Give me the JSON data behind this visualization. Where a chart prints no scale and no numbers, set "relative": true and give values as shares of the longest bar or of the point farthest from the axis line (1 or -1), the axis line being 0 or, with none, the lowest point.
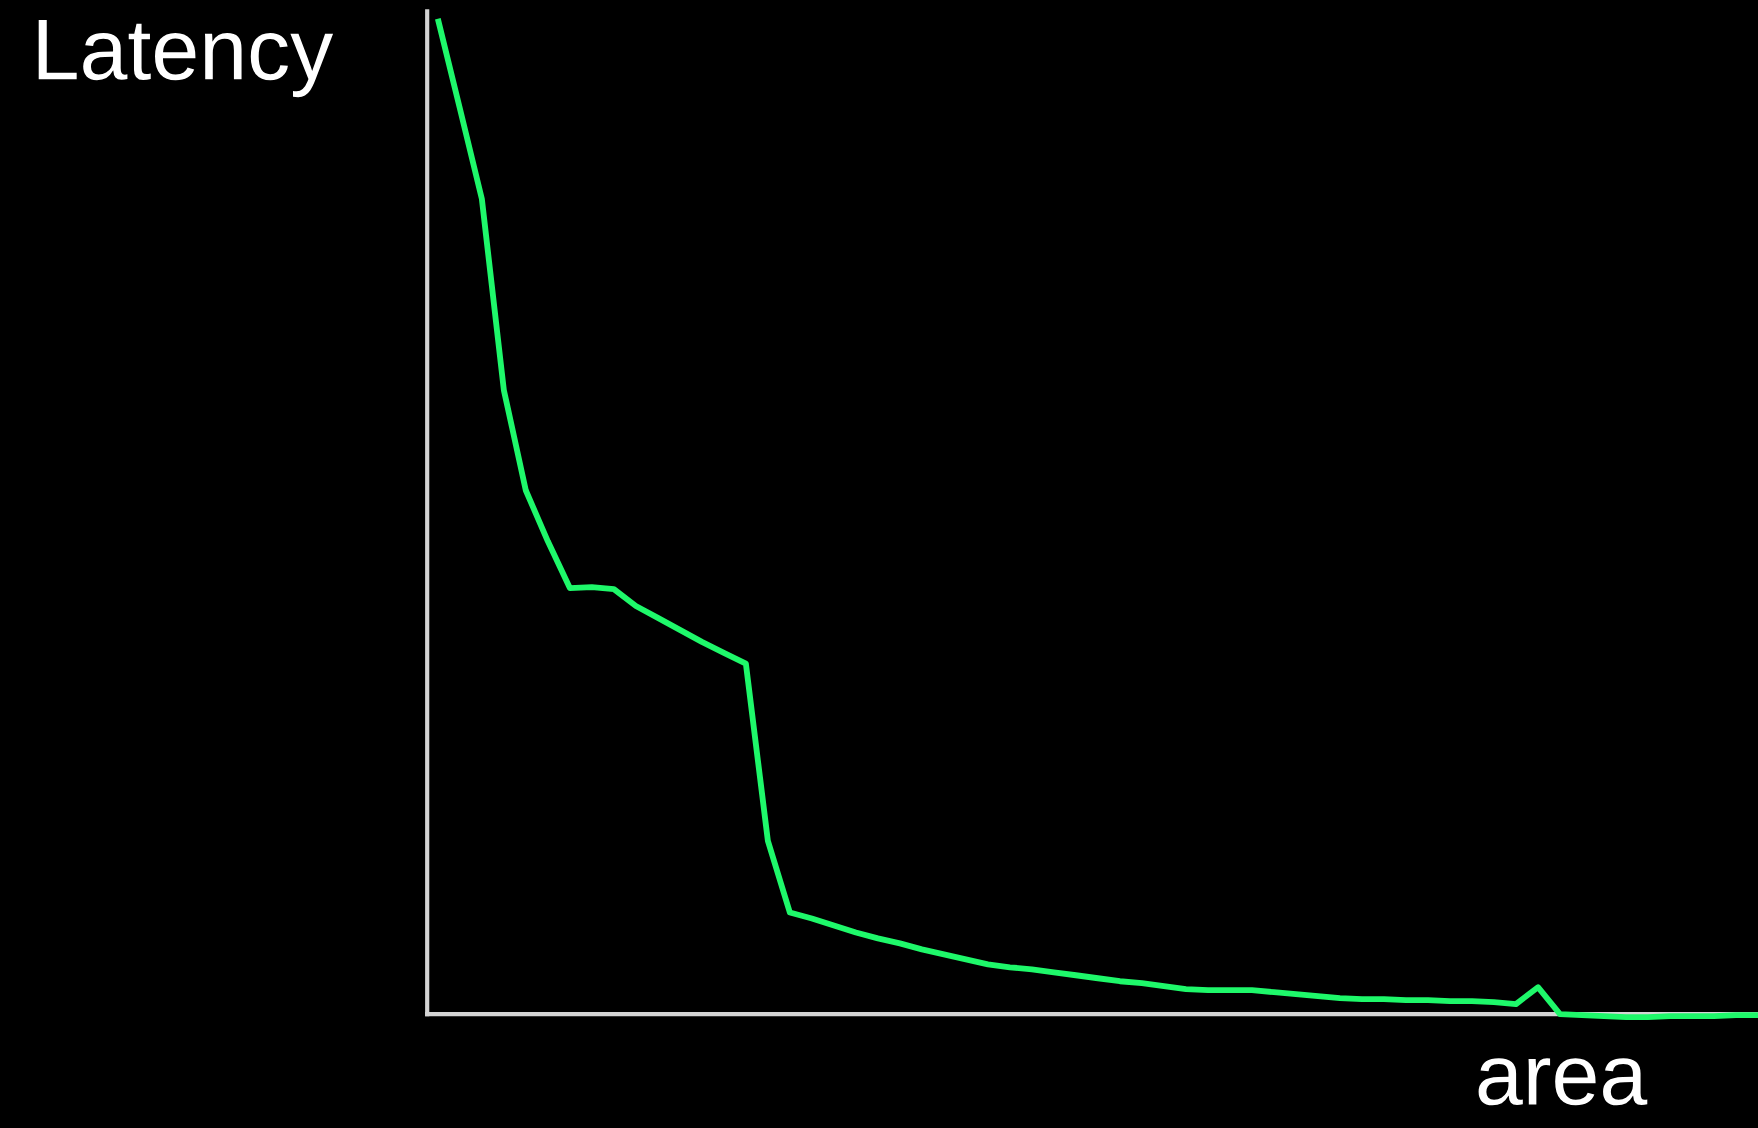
{
  "chart_data": {
    "type": "line",
    "relative": true,
    "ylabel": "Latency",
    "xlabel": "area",
    "categories": [
      null,
      null,
      null,
      null,
      null,
      null,
      null,
      null,
      null,
      null,
      null,
      null,
      null,
      null,
      null,
      null,
      null,
      null,
      null,
      null,
      null,
      null,
      null,
      null,
      null,
      null,
      null,
      null,
      null,
      null,
      null,
      null,
      null,
      null,
      null,
      null,
      null,
      null,
      null,
      null,
      null,
      null,
      null,
      null,
      null,
      null,
      null,
      null,
      null,
      null,
      null,
      null,
      null,
      null,
      null,
      null,
      null,
      null,
      null,
      null,
      null
    ],
    "series": [
      {
        "color": "#1ef86a",
        "values": [
          1.0,
          0.91,
          0.819,
          0.627,
          0.526,
          0.475,
          0.428,
          0.429,
          0.427,
          0.41,
          0.398,
          0.386,
          0.374,
          0.363,
          0.352,
          0.174,
          0.102,
          0.096,
          0.089,
          0.082,
          0.076,
          0.071,
          0.065,
          0.06,
          0.055,
          0.05,
          0.047,
          0.045,
          0.042,
          0.039,
          0.036,
          0.033,
          0.031,
          0.028,
          0.025,
          0.024,
          0.024,
          0.024,
          0.022,
          0.02,
          0.018,
          0.016,
          0.015,
          0.015,
          0.014,
          0.014,
          0.013,
          0.013,
          0.012,
          0.01,
          0.027,
          0.0,
          -0.001,
          -0.002,
          -0.003,
          -0.003,
          -0.002,
          -0.002,
          -0.002,
          -0.001,
          -0.001
        ]
      }
    ],
    "marker": "none",
    "line_style": "solid"
  }
}
